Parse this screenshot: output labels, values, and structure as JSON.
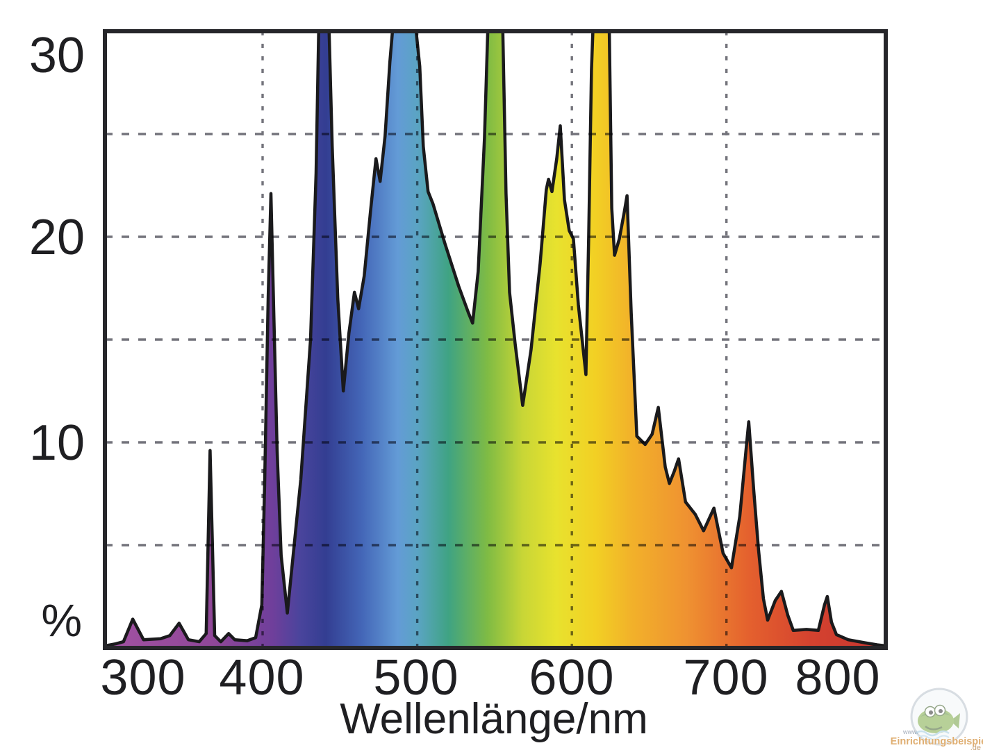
{
  "chart_data": {
    "type": "area",
    "title": "",
    "xlabel": "Wellenlänge/nm",
    "ylabel": "%",
    "x_ticks": [
      300,
      400,
      500,
      600,
      700,
      800
    ],
    "y_ticks": [
      30,
      20,
      10
    ],
    "x_range": [
      298,
      803
    ],
    "y_range": [
      0,
      30
    ],
    "x_gridlines": [
      400,
      500,
      600,
      700
    ],
    "y_gridlines": [
      5,
      10,
      15,
      20,
      25
    ],
    "grid_style": "dashed",
    "legend": false,
    "description": "Emission spectrum of a fluorescent lamp; intensity (%) vs wavelength (nm); spectral-rainbow filled area; four main lines clipped at top of 30% scale",
    "clipped_peaks_nm": [
      436,
      490,
      546,
      614
    ],
    "gradient_stops": [
      [
        0.0,
        "#a252a2"
      ],
      [
        0.14,
        "#8f4798"
      ],
      [
        0.215,
        "#6f3f9b"
      ],
      [
        0.25,
        "#4a449c"
      ],
      [
        0.283,
        "#333e92"
      ],
      [
        0.33,
        "#4467b8"
      ],
      [
        0.375,
        "#639bd6"
      ],
      [
        0.4,
        "#5ba4c4"
      ],
      [
        0.44,
        "#3fa383"
      ],
      [
        0.49,
        "#7fbb44"
      ],
      [
        0.535,
        "#c8d636"
      ],
      [
        0.578,
        "#e8e22e"
      ],
      [
        0.628,
        "#f2d024"
      ],
      [
        0.675,
        "#f2b12a"
      ],
      [
        0.745,
        "#ef9231"
      ],
      [
        0.826,
        "#e4602e"
      ],
      [
        0.905,
        "#d4422f"
      ],
      [
        1.0,
        "#c63530"
      ]
    ],
    "points": [
      [
        298,
        0.1
      ],
      [
        305,
        0.2
      ],
      [
        310,
        0.3
      ],
      [
        316,
        1.4
      ],
      [
        323,
        0.4
      ],
      [
        334,
        0.45
      ],
      [
        340,
        0.6
      ],
      [
        346,
        1.2
      ],
      [
        352,
        0.4
      ],
      [
        359,
        0.3
      ],
      [
        363.5,
        0.7
      ],
      [
        366,
        9.6
      ],
      [
        369,
        0.6
      ],
      [
        373,
        0.3
      ],
      [
        378,
        0.7
      ],
      [
        382,
        0.4
      ],
      [
        390,
        0.35
      ],
      [
        395.5,
        0.5
      ],
      [
        399.5,
        2.1
      ],
      [
        401.3,
        7.9
      ],
      [
        403.6,
        17.0
      ],
      [
        405.4,
        22.1
      ],
      [
        407.2,
        16.3
      ],
      [
        409.4,
        9.6
      ],
      [
        412,
        4.5
      ],
      [
        416,
        1.7
      ],
      [
        424.7,
        8.2
      ],
      [
        431,
        15.0
      ],
      [
        434.6,
        23.1
      ],
      [
        436.4,
        30.5
      ],
      [
        442.7,
        30.8
      ],
      [
        445,
        24.4
      ],
      [
        448.6,
        17.0
      ],
      [
        452.2,
        12.5
      ],
      [
        455.8,
        15.3
      ],
      [
        459.4,
        17.3
      ],
      [
        462.1,
        16.5
      ],
      [
        465.7,
        18.1
      ],
      [
        469.7,
        21.2
      ],
      [
        473.3,
        23.8
      ],
      [
        476,
        22.7
      ],
      [
        479.2,
        24.9
      ],
      [
        482.3,
        28.5
      ],
      [
        485,
        30.9
      ],
      [
        495.4,
        31.2
      ],
      [
        499,
        30.2
      ],
      [
        501.6,
        28.3
      ],
      [
        503.9,
        24.4
      ],
      [
        507,
        22.2
      ],
      [
        510.2,
        21.6
      ],
      [
        517.8,
        19.7
      ],
      [
        526.8,
        17.6
      ],
      [
        533.1,
        16.3
      ],
      [
        535.8,
        15.8
      ],
      [
        539.4,
        18.3
      ],
      [
        543.5,
        24.8
      ],
      [
        545.7,
        30.2
      ],
      [
        555.2,
        30.5
      ],
      [
        557.4,
        22.1
      ],
      [
        559.7,
        17.3
      ],
      [
        563.3,
        14.8
      ],
      [
        568.2,
        11.8
      ],
      [
        573.6,
        14.5
      ],
      [
        579.5,
        18.7
      ],
      [
        583.5,
        22.3
      ],
      [
        584.9,
        22.8
      ],
      [
        587.1,
        22.2
      ],
      [
        590.2,
        23.8
      ],
      [
        592.5,
        25.4
      ],
      [
        595.2,
        21.8
      ],
      [
        598.3,
        20.3
      ],
      [
        601,
        19.9
      ],
      [
        604.2,
        16.7
      ],
      [
        609.1,
        13.3
      ],
      [
        610.9,
        20.0
      ],
      [
        612.7,
        28.1
      ],
      [
        614.1,
        31.1
      ],
      [
        624,
        31.2
      ],
      [
        625.8,
        21.4
      ],
      [
        627.6,
        19.1
      ],
      [
        630.7,
        19.9
      ],
      [
        633.9,
        21.2
      ],
      [
        635.7,
        22.0
      ],
      [
        638.4,
        16.3
      ],
      [
        642,
        10.3
      ],
      [
        647.4,
        9.9
      ],
      [
        651.9,
        10.4
      ],
      [
        655.9,
        11.7
      ],
      [
        660.4,
        8.8
      ],
      [
        663.1,
        8.0
      ],
      [
        666.3,
        8.6
      ],
      [
        669,
        9.2
      ],
      [
        673.5,
        7.1
      ],
      [
        679.8,
        6.5
      ],
      [
        685.2,
        5.7
      ],
      [
        691.9,
        6.8
      ],
      [
        697.8,
        4.6
      ],
      [
        703.2,
        3.9
      ],
      [
        708.6,
        6.4
      ],
      [
        712.6,
        9.6
      ],
      [
        714.4,
        11.0
      ],
      [
        717.6,
        7.7
      ],
      [
        720.7,
        4.8
      ],
      [
        723.9,
        2.4
      ],
      [
        726.6,
        1.35
      ],
      [
        731.5,
        2.3
      ],
      [
        735.5,
        2.75
      ],
      [
        739.6,
        1.6
      ],
      [
        743.2,
        0.85
      ],
      [
        751.7,
        0.9
      ],
      [
        759.4,
        0.85
      ],
      [
        763.4,
        2.1
      ],
      [
        765.2,
        2.5
      ],
      [
        767.9,
        1.25
      ],
      [
        771.1,
        0.65
      ],
      [
        778.7,
        0.4
      ],
      [
        789.5,
        0.25
      ],
      [
        797.6,
        0.15
      ],
      [
        803,
        0.1
      ]
    ]
  },
  "watermark": {
    "www": "www.",
    "name": "Einrichtungsbeispiele",
    "tld": ".de"
  }
}
